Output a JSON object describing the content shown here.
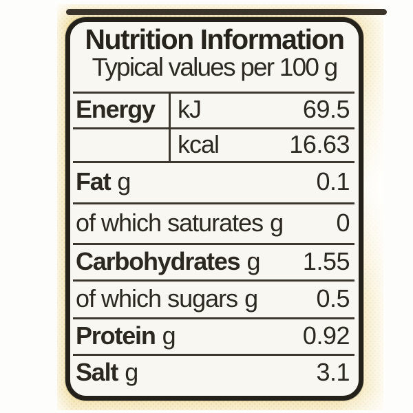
{
  "label": {
    "title": "Nutrition Information",
    "subtitle": "Typical values per 100 g",
    "rows": [
      {
        "name": "Energy",
        "unit": "kJ",
        "value": "69.5"
      },
      {
        "name": "",
        "unit": "kcal",
        "value": "16.63"
      },
      {
        "name": "Fat",
        "unit": "g",
        "value": "0.1"
      },
      {
        "name": "of which saturates",
        "unit": "g",
        "value": "0"
      },
      {
        "name": "Carbohydrates",
        "unit": "g",
        "value": "1.55"
      },
      {
        "name": "of which sugars",
        "unit": "g",
        "value": "0.5"
      },
      {
        "name": "Protein",
        "unit": "g",
        "value": "0.92"
      },
      {
        "name": "Salt",
        "unit": "g",
        "value": "3.1"
      }
    ],
    "colors": {
      "fabric_yellow": "#f0dd9c",
      "label_background": "#f9f7f1",
      "ink": "#26231d"
    }
  }
}
